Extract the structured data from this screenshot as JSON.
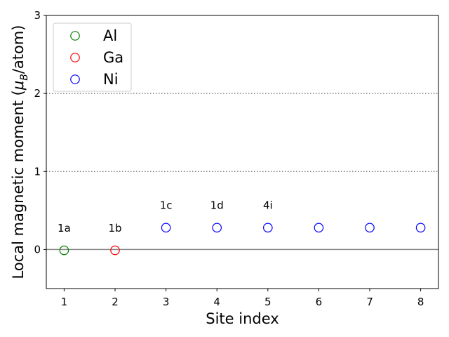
{
  "chart_data": {
    "type": "scatter",
    "xlabel": "Site index",
    "ylabel_prefix": "Local magnetic moment (",
    "ylabel_mu": "μ",
    "ylabel_sub": "B",
    "ylabel_suffix": "/atom)",
    "xlim": [
      0.65,
      8.35
    ],
    "ylim": [
      -0.5,
      3
    ],
    "xticks": [
      1,
      2,
      3,
      4,
      5,
      6,
      7,
      8
    ],
    "yticks": [
      0,
      1,
      2,
      3
    ],
    "grid": false,
    "legend_position": "top-left",
    "reference_lines": [
      {
        "y": 0,
        "style": "solid",
        "color": "#808080"
      },
      {
        "y": 1,
        "style": "dotted",
        "color": "#808080"
      },
      {
        "y": 2,
        "style": "dotted",
        "color": "#808080"
      }
    ],
    "series": [
      {
        "name": "Al",
        "color": "#008000",
        "points": [
          {
            "x": 1,
            "y": -0.01
          }
        ]
      },
      {
        "name": "Ga",
        "color": "#ff0000",
        "points": [
          {
            "x": 2,
            "y": -0.01
          }
        ]
      },
      {
        "name": "Ni",
        "color": "#0000ff",
        "points": [
          {
            "x": 3,
            "y": 0.28
          },
          {
            "x": 4,
            "y": 0.28
          },
          {
            "x": 5,
            "y": 0.28
          },
          {
            "x": 6,
            "y": 0.28
          },
          {
            "x": 7,
            "y": 0.28
          },
          {
            "x": 8,
            "y": 0.28
          }
        ]
      }
    ],
    "annotations": [
      {
        "text": "1a",
        "x": 1,
        "y": 0.23
      },
      {
        "text": "1b",
        "x": 2,
        "y": 0.23
      },
      {
        "text": "1c",
        "x": 3,
        "y": 0.52
      },
      {
        "text": "1d",
        "x": 4,
        "y": 0.52
      },
      {
        "text": "4i",
        "x": 5,
        "y": 0.52
      }
    ]
  }
}
